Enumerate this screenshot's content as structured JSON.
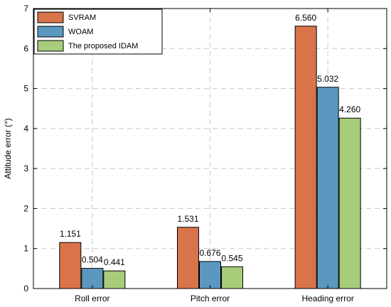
{
  "chart_data": {
    "type": "bar",
    "title": "",
    "xlabel": "",
    "ylabel": "Attitude error (°)",
    "categories": [
      "Roll error",
      "Pitch error",
      "Heading error"
    ],
    "series": [
      {
        "name": "SVRAM",
        "color": "#d9734a",
        "values": [
          1.151,
          1.531,
          6.56
        ],
        "labels": [
          "1.151",
          "1.531",
          "6.560"
        ]
      },
      {
        "name": "WOAM",
        "color": "#5b98bf",
        "values": [
          0.504,
          0.676,
          5.032
        ],
        "labels": [
          "0.504",
          "0.676",
          "5.032"
        ]
      },
      {
        "name": "The proposed IDAM",
        "color": "#a7cc7a",
        "values": [
          0.441,
          0.545,
          4.26
        ],
        "labels": [
          "0.441",
          "0.545",
          "4.260"
        ]
      }
    ],
    "ylim": [
      0,
      7
    ],
    "yticks": [
      0,
      1,
      2,
      3,
      4,
      5,
      6,
      7
    ],
    "grid": true,
    "legend_position": "top-left"
  }
}
